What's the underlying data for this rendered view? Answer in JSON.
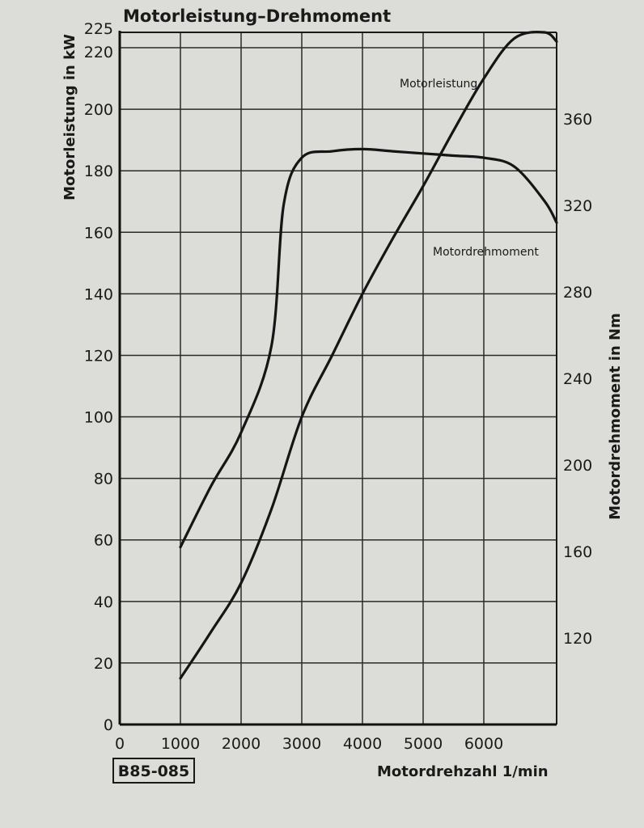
{
  "chart_data": {
    "type": "line",
    "title": "Motorleistung–Drehmoment",
    "figure_id": "B85-085",
    "xlabel": "Motordrehzahl 1/min",
    "ylabel_left": "Motorleistung in kW",
    "ylabel_right": "Motordrehmoment in Nm",
    "xlim": [
      0,
      7200
    ],
    "ylim_left": [
      0,
      225
    ],
    "ylim_right": [
      80,
      400
    ],
    "x_ticks": [
      0,
      1000,
      2000,
      3000,
      4000,
      5000,
      6000
    ],
    "y_ticks_left": [
      0,
      20,
      40,
      60,
      80,
      100,
      120,
      140,
      160,
      180,
      200,
      220,
      225
    ],
    "y_ticks_right": [
      120,
      160,
      200,
      240,
      280,
      320,
      360
    ],
    "grid": true,
    "series": [
      {
        "name": "Motorleistung",
        "axis": "left",
        "x": [
          1000,
          1500,
          2000,
          2500,
          3000,
          3500,
          4000,
          4500,
          5000,
          5500,
          6000,
          6500,
          7000,
          7200
        ],
        "values": [
          15,
          30,
          46,
          70,
          100,
          120,
          140,
          158,
          175,
          193,
          210,
          223,
          225,
          222
        ]
      },
      {
        "name": "Motordrehmoment",
        "axis": "right",
        "x": [
          1000,
          1500,
          2000,
          2500,
          2700,
          3000,
          3500,
          4000,
          4500,
          5000,
          5500,
          6000,
          6500,
          7000,
          7200
        ],
        "values": [
          162,
          190,
          215,
          255,
          320,
          342,
          345,
          346,
          345,
          344,
          343,
          342,
          338,
          322,
          312
        ]
      }
    ]
  }
}
